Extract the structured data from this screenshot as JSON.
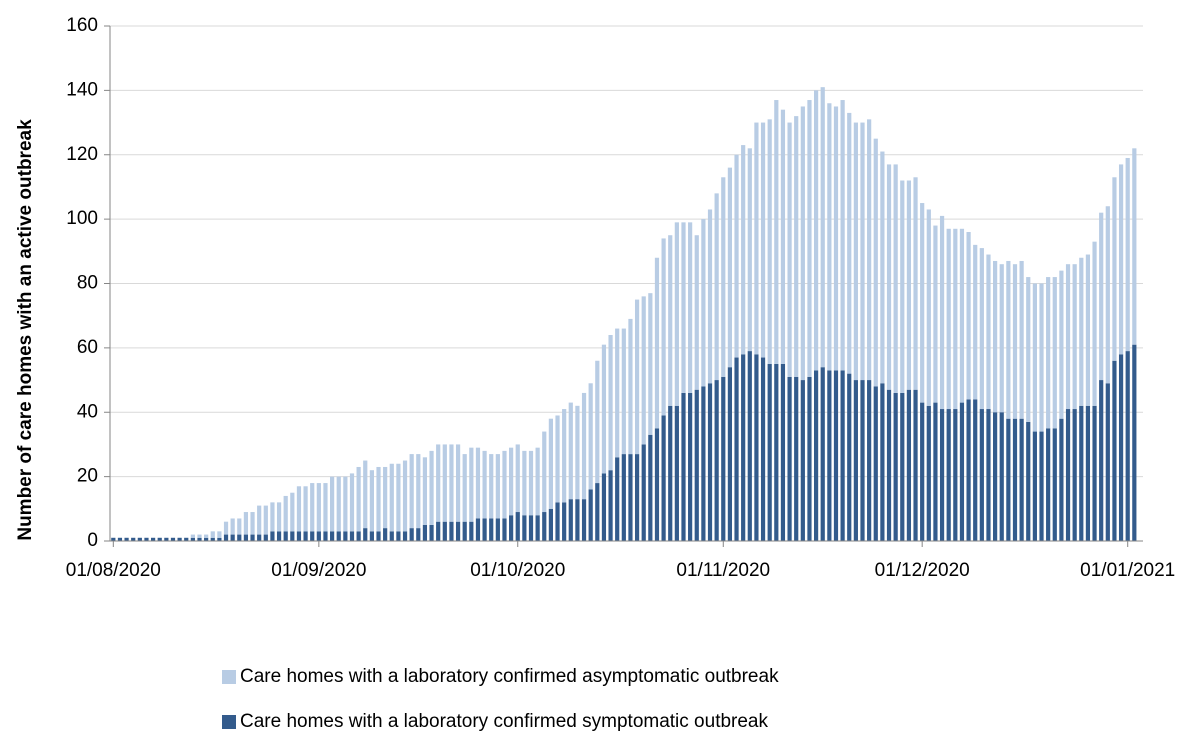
{
  "chart_data": {
    "type": "stacked_bar",
    "y_label": "Number of care homes with an active outbreak",
    "categories": [
      "01/08/2020",
      null,
      null,
      null,
      null,
      null,
      null,
      null,
      null,
      null,
      null,
      null,
      null,
      null,
      null,
      null,
      null,
      null,
      null,
      null,
      null,
      null,
      null,
      null,
      null,
      null,
      null,
      null,
      null,
      null,
      null,
      "01/09/2020",
      null,
      null,
      null,
      null,
      null,
      null,
      null,
      null,
      null,
      null,
      null,
      null,
      null,
      null,
      null,
      null,
      null,
      null,
      null,
      null,
      null,
      null,
      null,
      null,
      null,
      null,
      null,
      null,
      null,
      "01/10/2020",
      null,
      null,
      null,
      null,
      null,
      null,
      null,
      null,
      null,
      null,
      null,
      null,
      null,
      null,
      null,
      null,
      null,
      null,
      null,
      null,
      null,
      null,
      null,
      null,
      null,
      null,
      null,
      null,
      null,
      null,
      "01/11/2020",
      null,
      null,
      null,
      null,
      null,
      null,
      null,
      null,
      null,
      null,
      null,
      null,
      null,
      null,
      null,
      null,
      null,
      null,
      null,
      null,
      null,
      null,
      null,
      null,
      null,
      null,
      null,
      null,
      null,
      "01/12/2020",
      null,
      null,
      null,
      null,
      null,
      null,
      null,
      null,
      null,
      null,
      null,
      null,
      null,
      null,
      null,
      null,
      null,
      null,
      null,
      null,
      null,
      null,
      null,
      null,
      null,
      null,
      null,
      null,
      null,
      null,
      "01/01/2021",
      null
    ],
    "series": [
      {
        "name": "Care homes with a laboratory confirmed symptomatic outbreak",
        "color": "#335b8c",
        "values": [
          1,
          1,
          1,
          1,
          1,
          1,
          1,
          1,
          1,
          1,
          1,
          1,
          1,
          1,
          1,
          1,
          1,
          2,
          2,
          2,
          2,
          2,
          2,
          2,
          3,
          3,
          3,
          3,
          3,
          3,
          3,
          3,
          3,
          3,
          3,
          3,
          3,
          3,
          4,
          3,
          3,
          4,
          3,
          3,
          3,
          4,
          4,
          5,
          5,
          6,
          6,
          6,
          6,
          6,
          6,
          7,
          7,
          7,
          7,
          7,
          8,
          9,
          8,
          8,
          8,
          9,
          10,
          12,
          12,
          13,
          13,
          13,
          16,
          18,
          21,
          22,
          26,
          27,
          27,
          27,
          30,
          33,
          35,
          39,
          42,
          42,
          46,
          46,
          47,
          48,
          49,
          50,
          51,
          54,
          57,
          58,
          59,
          58,
          57,
          55,
          55,
          55,
          51,
          51,
          50,
          51,
          53,
          54,
          53,
          53,
          53,
          52,
          50,
          50,
          50,
          48,
          49,
          47,
          46,
          46,
          47,
          47,
          43,
          42,
          43,
          41,
          41,
          41,
          43,
          44,
          44,
          41,
          41,
          40,
          40,
          38,
          38,
          38,
          37,
          34,
          34,
          35,
          35,
          38,
          41,
          41,
          42,
          42,
          42,
          50,
          49,
          56,
          58,
          59,
          61
        ]
      },
      {
        "name": "Care homes with a laboratory confirmed asymptomatic outbreak",
        "color": "#b8cce4",
        "values": [
          0,
          0,
          0,
          0,
          0,
          0,
          0,
          0,
          0,
          0,
          0,
          0,
          1,
          1,
          1,
          2,
          2,
          4,
          5,
          5,
          7,
          7,
          9,
          9,
          9,
          9,
          11,
          12,
          14,
          14,
          15,
          15,
          15,
          17,
          17,
          17,
          18,
          20,
          21,
          19,
          20,
          19,
          21,
          21,
          22,
          23,
          23,
          21,
          23,
          24,
          24,
          24,
          24,
          21,
          23,
          22,
          21,
          20,
          20,
          21,
          21,
          21,
          20,
          20,
          21,
          25,
          28,
          27,
          29,
          30,
          29,
          33,
          33,
          38,
          40,
          42,
          40,
          39,
          42,
          48,
          46,
          44,
          53,
          55,
          53,
          57,
          53,
          53,
          48,
          52,
          54,
          58,
          62,
          62,
          63,
          65,
          63,
          72,
          73,
          76,
          82,
          79,
          79,
          81,
          85,
          86,
          87,
          87,
          83,
          82,
          84,
          81,
          80,
          80,
          81,
          77,
          72,
          70,
          71,
          66,
          65,
          66,
          62,
          61,
          55,
          60,
          56,
          56,
          54,
          52,
          48,
          50,
          48,
          47,
          46,
          49,
          48,
          49,
          45,
          46,
          46,
          47,
          47,
          46,
          45,
          45,
          46,
          47,
          51,
          52,
          55,
          57,
          59,
          60,
          61
        ]
      }
    ],
    "ylim": [
      0,
      160
    ],
    "yticks": [
      0,
      20,
      40,
      60,
      80,
      100,
      120,
      140,
      160
    ],
    "grid": true
  }
}
